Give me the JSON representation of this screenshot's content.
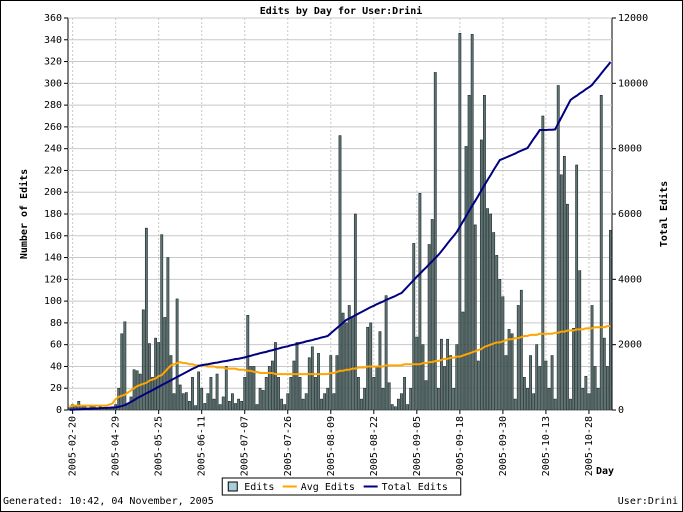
{
  "chart_data": {
    "type": "bar",
    "title": "Edits by Day for User:Drini",
    "x_label": "Day",
    "y_label": "Number of Edits",
    "y2_label": "Total Edits",
    "annotations": [
      "Generated: 10:42, 04 November, 2005",
      "User:Drini"
    ],
    "legend": "bottom",
    "grid": true,
    "ylim": [
      0,
      360
    ],
    "yticks": [
      0,
      20,
      40,
      60,
      80,
      100,
      120,
      140,
      160,
      180,
      200,
      220,
      240,
      260,
      280,
      300,
      320,
      340,
      360
    ],
    "y2lim": [
      0,
      12000
    ],
    "y2ticks": [
      0,
      2000,
      4000,
      6000,
      8000,
      10000,
      12000
    ],
    "categories": [
      null,
      "2005-02-20",
      null,
      null,
      null,
      null,
      null,
      null,
      null,
      null,
      null,
      null,
      null,
      null,
      null,
      "2005-04-29",
      null,
      null,
      null,
      null,
      null,
      null,
      null,
      null,
      null,
      null,
      null,
      null,
      null,
      "2005-05-25",
      null,
      null,
      null,
      null,
      null,
      null,
      null,
      null,
      null,
      null,
      null,
      null,
      null,
      "2005-06-11",
      null,
      null,
      null,
      null,
      null,
      null,
      null,
      null,
      null,
      null,
      null,
      null,
      null,
      "2005-07-07",
      null,
      null,
      null,
      null,
      null,
      null,
      null,
      null,
      null,
      null,
      null,
      null,
      null,
      "2005-07-26",
      null,
      null,
      null,
      null,
      null,
      null,
      null,
      null,
      null,
      null,
      null,
      null,
      null,
      "2005-08-09",
      null,
      null,
      null,
      null,
      null,
      null,
      null,
      null,
      null,
      null,
      null,
      null,
      null,
      "2005-08-22",
      null,
      null,
      null,
      null,
      null,
      null,
      null,
      null,
      null,
      null,
      null,
      null,
      null,
      "2005-09-05",
      null,
      null,
      null,
      null,
      null,
      null,
      null,
      null,
      null,
      null,
      null,
      null,
      null,
      "2005-09-18",
      null,
      null,
      null,
      null,
      null,
      null,
      null,
      null,
      null,
      null,
      null,
      null,
      null,
      "2005-09-30",
      null,
      null,
      null,
      null,
      null,
      null,
      null,
      null,
      null,
      null,
      null,
      null,
      null,
      "2005-10-13",
      null,
      null,
      null,
      null,
      null,
      null,
      null,
      null,
      null,
      null,
      null,
      null,
      null,
      "2005-10-28",
      null,
      null,
      null,
      null,
      null,
      null,
      null
    ],
    "series": [
      {
        "name": "Edits",
        "type": "bar",
        "color": "#5f7373",
        "values": [
          2,
          5,
          3,
          8,
          4,
          3,
          2,
          3,
          4,
          2,
          3,
          2,
          1,
          2,
          3,
          5,
          20,
          70,
          81,
          6,
          12,
          37,
          36,
          33,
          92,
          167,
          61,
          30,
          66,
          62,
          161,
          85,
          140,
          50,
          15,
          102,
          23,
          15,
          16,
          8,
          30,
          4,
          35,
          20,
          6,
          15,
          30,
          10,
          33,
          5,
          12,
          40,
          8,
          15,
          6,
          10,
          8,
          30,
          87,
          40,
          40,
          5,
          20,
          18,
          30,
          40,
          45,
          62,
          30,
          10,
          5,
          15,
          30,
          45,
          62,
          30,
          10,
          15,
          48,
          58,
          30,
          52,
          10,
          15,
          20,
          50,
          15,
          50,
          252,
          89,
          80,
          96,
          85,
          180,
          30,
          10,
          20,
          76,
          80,
          30,
          40,
          72,
          20,
          105,
          25,
          5,
          3,
          10,
          15,
          30,
          5,
          20,
          153,
          67,
          199,
          60,
          27,
          152,
          175,
          310,
          20,
          65,
          40,
          65,
          50,
          20,
          60,
          346,
          90,
          242,
          289,
          345,
          170,
          45,
          248,
          289,
          185,
          180,
          163,
          142,
          120,
          104,
          50,
          74,
          70,
          10,
          96,
          110,
          30,
          20,
          50,
          15,
          60,
          40,
          270,
          45,
          20,
          50,
          10,
          298,
          216,
          233,
          189,
          10,
          75,
          225,
          128,
          20,
          31,
          15,
          96,
          40,
          20,
          289,
          66,
          40,
          165
        ]
      },
      {
        "name": "Avg Edits",
        "type": "line",
        "color": "#ffa500",
        "values": [
          3,
          4,
          4,
          4,
          4,
          4,
          4,
          4,
          4,
          4,
          4,
          4,
          4,
          5,
          6,
          10,
          12,
          13,
          14,
          16,
          18,
          20,
          22,
          23,
          24,
          25,
          27,
          28,
          29,
          31,
          32,
          35,
          38,
          41,
          42,
          43,
          44,
          43,
          43,
          42,
          42,
          41,
          41,
          41,
          41,
          40,
          40,
          40,
          39,
          39,
          39,
          38,
          38,
          38,
          38,
          37,
          37,
          37,
          36,
          36,
          35,
          35,
          34,
          34,
          34,
          34,
          34,
          33,
          33,
          33,
          33,
          33,
          33,
          33,
          33,
          33,
          33,
          33,
          33,
          33,
          33,
          33,
          33,
          33,
          33,
          34,
          34,
          35,
          36,
          36,
          37,
          37,
          38,
          38,
          39,
          39,
          39,
          40,
          40,
          40,
          40,
          40,
          40,
          41,
          41,
          41,
          41,
          41,
          41,
          42,
          42,
          42,
          42,
          42,
          42,
          43,
          43,
          44,
          44,
          45,
          45,
          46,
          47,
          47,
          48,
          48,
          49,
          49,
          50,
          51,
          52,
          53,
          54,
          55,
          56,
          58,
          59,
          60,
          61,
          62,
          62,
          63,
          64,
          65,
          65,
          66,
          66,
          67,
          68,
          68,
          69,
          69,
          69,
          70,
          70,
          70,
          70,
          70,
          71,
          71,
          72,
          72,
          73,
          73,
          73,
          74,
          74,
          74,
          75,
          75,
          75,
          76,
          76,
          76,
          76,
          77,
          77
        ]
      },
      {
        "name": "Total Edits",
        "type": "line",
        "axis": "y2",
        "color": "#000080",
        "values": [
          5,
          10,
          15,
          20,
          25,
          30,
          35,
          40,
          45,
          50,
          55,
          60,
          65,
          70,
          75,
          80,
          100,
          120,
          150,
          200,
          250,
          300,
          360,
          410,
          460,
          510,
          560,
          610,
          660,
          710,
          765,
          810,
          860,
          910,
          960,
          1010,
          1060,
          1110,
          1160,
          1210,
          1260,
          1300,
          1350,
          1370,
          1390,
          1400,
          1420,
          1440,
          1450,
          1470,
          1490,
          1500,
          1520,
          1540,
          1560,
          1570,
          1590,
          1610,
          1640,
          1660,
          1690,
          1710,
          1740,
          1760,
          1780,
          1810,
          1830,
          1860,
          1880,
          1910,
          1930,
          1950,
          1980,
          2000,
          2020,
          2050,
          2070,
          2100,
          2120,
          2140,
          2170,
          2190,
          2220,
          2240,
          2265,
          2350,
          2430,
          2510,
          2590,
          2670,
          2755,
          2800,
          2850,
          2900,
          2950,
          3000,
          3050,
          3100,
          3150,
          3190,
          3240,
          3280,
          3320,
          3370,
          3410,
          3450,
          3490,
          3540,
          3580,
          3680,
          3780,
          3880,
          3980,
          4080,
          4170,
          4270,
          4360,
          4460,
          4550,
          4650,
          4745,
          4860,
          4980,
          5100,
          5220,
          5330,
          5450,
          5610,
          5770,
          5930,
          6090,
          6250,
          6400,
          6560,
          6720,
          6880,
          7040,
          7190,
          7350,
          7500,
          7650,
          7690,
          7730,
          7770,
          7810,
          7850,
          7900,
          7940,
          7980,
          8020,
          8160,
          8300,
          8430,
          8570,
          8570,
          8570,
          8580,
          8580,
          8590,
          8770,
          8950,
          9130,
          9310,
          9490,
          9560,
          9620,
          9690,
          9750,
          9820,
          9880,
          9950,
          10070,
          10180,
          10300,
          10420,
          10530,
          10650
        ]
      }
    ]
  }
}
